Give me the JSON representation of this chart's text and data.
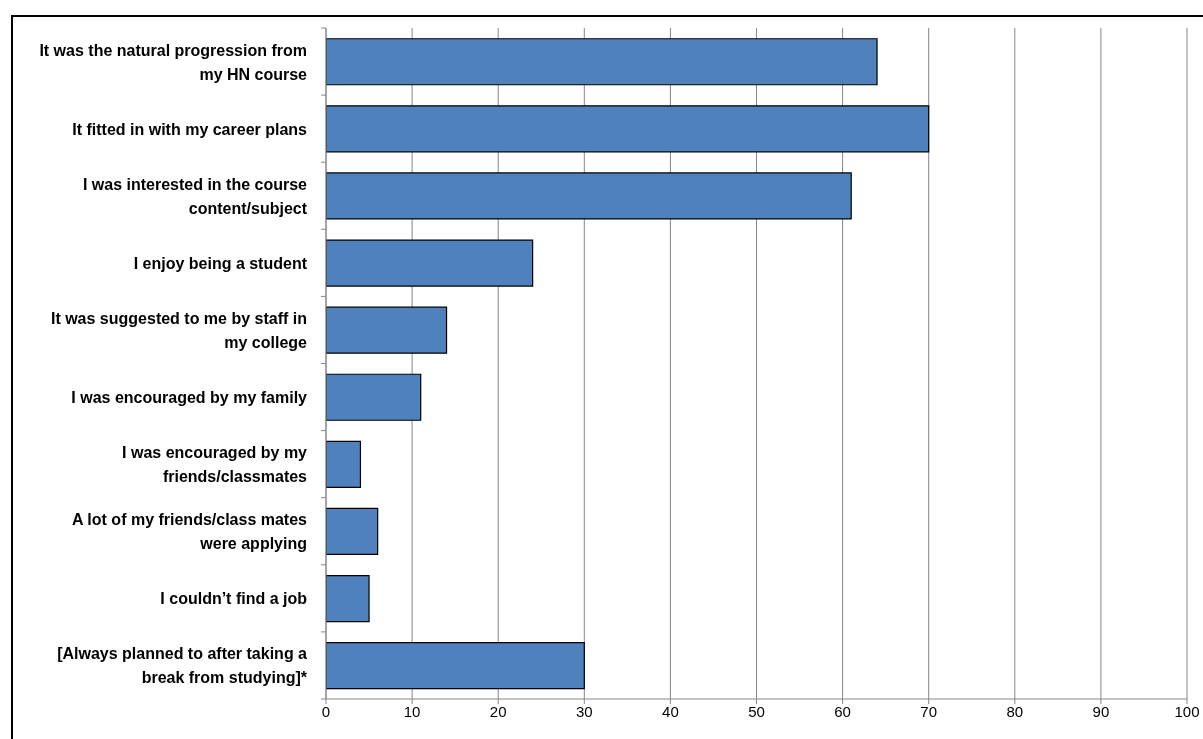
{
  "chart_data": {
    "type": "bar",
    "orientation": "horizontal",
    "categories": [
      "It was the natural progression from my HN course",
      "It fitted in with my career plans",
      "I was interested in the course content/subject",
      "I enjoy being a student",
      "It was suggested to me by staff in my college",
      "I was encouraged by my family",
      "I was encouraged by my friends/classmates",
      "A lot of my friends/class mates were applying",
      "I couldn’t find a job",
      "[Always planned to after taking a break from studying]*"
    ],
    "values": [
      64,
      70,
      61,
      24,
      14,
      11,
      4,
      6,
      5,
      30
    ],
    "color": "#4f81bd",
    "xlim": [
      0,
      100
    ],
    "xticks": [
      0,
      10,
      20,
      30,
      40,
      50,
      60,
      70,
      80,
      90,
      100
    ],
    "grid": "x"
  }
}
